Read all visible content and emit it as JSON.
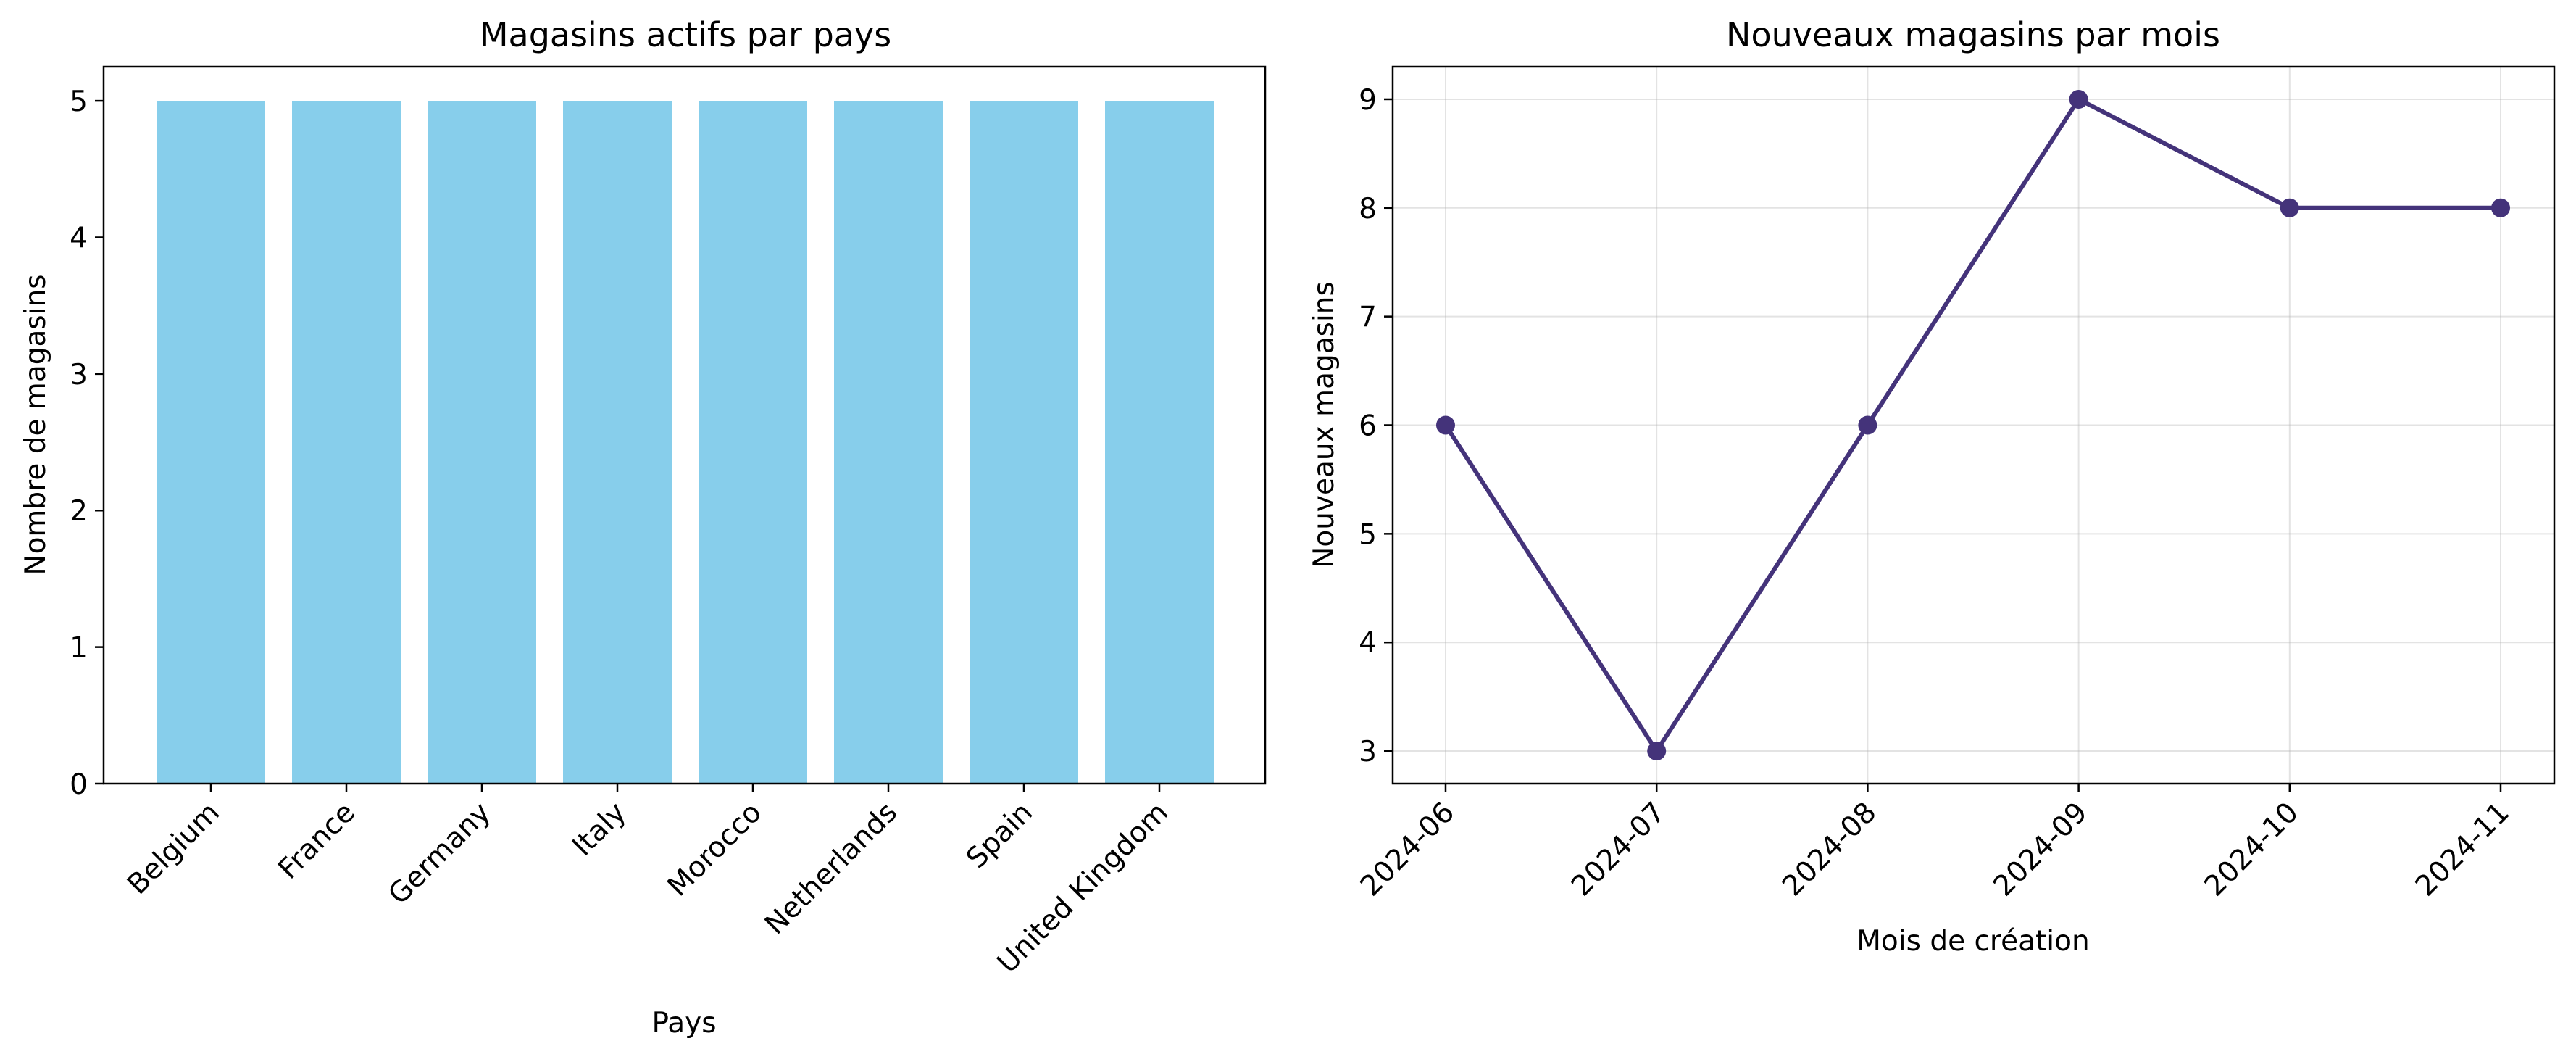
{
  "chart_data": [
    {
      "type": "bar",
      "title": "Magasins actifs par pays",
      "xlabel": "Pays",
      "ylabel": "Nombre de magasins",
      "categories": [
        "Belgium",
        "France",
        "Germany",
        "Italy",
        "Morocco",
        "Netherlands",
        "Spain",
        "United Kingdom"
      ],
      "values": [
        5,
        5,
        5,
        5,
        5,
        5,
        5,
        5
      ],
      "ylim": [
        0,
        5.25
      ],
      "yticks": [
        0,
        1,
        2,
        3,
        4,
        5
      ],
      "grid": false,
      "bar_color": "#87CEEB"
    },
    {
      "type": "line",
      "title": "Nouveaux magasins par mois",
      "xlabel": "Mois de création",
      "ylabel": "Nouveaux magasins",
      "x": [
        "2024-06",
        "2024-07",
        "2024-08",
        "2024-09",
        "2024-10",
        "2024-11"
      ],
      "values": [
        6,
        3,
        6,
        9,
        8,
        8
      ],
      "ylim": [
        2.7,
        9.3
      ],
      "yticks": [
        3,
        4,
        5,
        6,
        7,
        8,
        9
      ],
      "grid": true,
      "line_color": "#44337A",
      "marker": "circle"
    }
  ]
}
